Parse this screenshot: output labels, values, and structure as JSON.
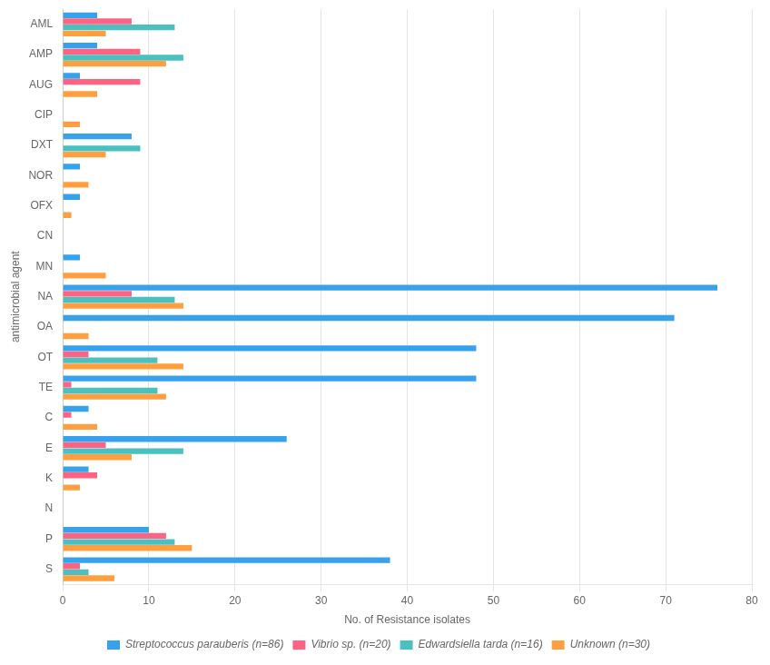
{
  "chart_data": {
    "type": "bar",
    "orientation": "horizontal",
    "categories": [
      "AML",
      "AMP",
      "AUG",
      "CIP",
      "DXT",
      "NOR",
      "OFX",
      "CN",
      "MN",
      "NA",
      "OA",
      "OT",
      "TE",
      "C",
      "E",
      "K",
      "N",
      "P",
      "S"
    ],
    "series": [
      {
        "name": "Streptococcus parauberis (n=86)",
        "values": [
          4,
          4,
          2,
          0,
          8,
          2,
          2,
          0,
          2,
          76,
          71,
          48,
          48,
          3,
          26,
          3,
          0,
          10,
          38
        ]
      },
      {
        "name": "Vibrio sp. (n=20)",
        "values": [
          8,
          9,
          9,
          0,
          0,
          0,
          0,
          0,
          0,
          8,
          0,
          3,
          1,
          1,
          5,
          4,
          0,
          12,
          2
        ]
      },
      {
        "name": "Edwardsiella tarda (n=16)",
        "values": [
          13,
          14,
          0,
          0,
          9,
          0,
          0,
          0,
          0,
          13,
          0,
          11,
          11,
          0,
          14,
          0,
          0,
          13,
          3
        ]
      },
      {
        "name": "Unknown (n=30)",
        "values": [
          5,
          12,
          4,
          2,
          5,
          3,
          1,
          0,
          5,
          14,
          3,
          14,
          12,
          4,
          8,
          2,
          0,
          15,
          6
        ]
      }
    ],
    "xlabel": "No. of Resistance isolates",
    "ylabel": "antimicrobial agent",
    "xlim": [
      0,
      80
    ],
    "xticks": [
      0,
      10,
      20,
      30,
      40,
      50,
      60,
      70,
      80
    ],
    "grid": true,
    "legend": "bottom"
  }
}
